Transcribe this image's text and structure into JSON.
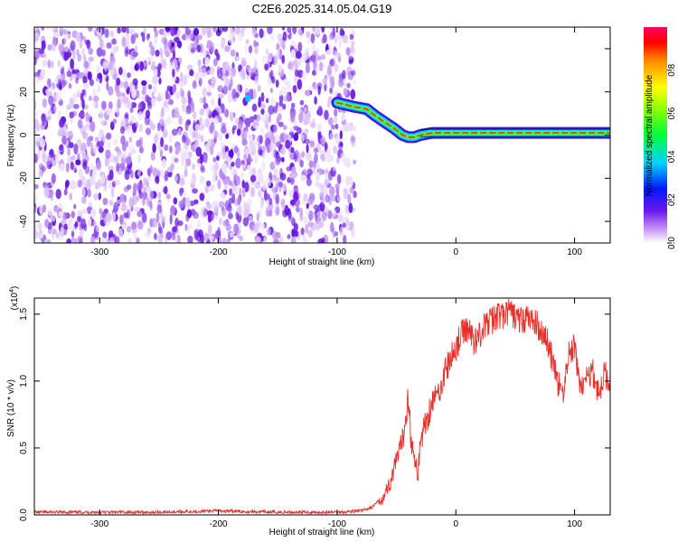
{
  "title": "C2E6.2025.314.05.04.G19",
  "chart_data": [
    {
      "type": "heatmap",
      "name": "spectrogram",
      "xlabel": "Height of straight line (km)",
      "ylabel": "Frequency (Hz)",
      "xlim": [
        -355,
        130
      ],
      "ylim": [
        -50,
        50
      ],
      "x_ticks": [
        -300,
        -200,
        -100,
        0,
        100
      ],
      "x_tick_labels": [
        "-300",
        "-200",
        "-100",
        "0",
        "100"
      ],
      "y_ticks": [
        -40,
        -20,
        0,
        20,
        40
      ],
      "y_tick_labels": [
        "-40",
        "-20",
        "0",
        "20",
        "40"
      ],
      "noise_region_x": [
        -355,
        -85
      ],
      "signal_track": {
        "x": [
          -100,
          -85,
          -75,
          -68,
          -60,
          -52,
          -45,
          -40,
          -35,
          -30,
          -20,
          -10,
          0,
          20,
          50,
          80,
          100,
          130
        ],
        "y": [
          15,
          13,
          12,
          9,
          6,
          3,
          0,
          -1,
          -1,
          0,
          1,
          1,
          1,
          1,
          1,
          1,
          1,
          1
        ]
      },
      "colorbar": {
        "label": "Normalized spectral amplitude",
        "range": [
          0,
          1
        ],
        "ticks": [
          0.0,
          0.2,
          0.4,
          0.6,
          0.8
        ],
        "tick_labels": [
          "0.0",
          "0.2",
          "0.4",
          "0.6",
          "0.8"
        ]
      }
    },
    {
      "type": "line",
      "name": "snr",
      "xlabel": "Height of straight line (km)",
      "ylabel": "SNR (10 * v/v)",
      "scale_label_main": "(x10",
      "scale_label_exp": "4",
      "scale_label_end": ")",
      "color": "#e8302a",
      "xlim": [
        -355,
        130
      ],
      "ylim": [
        0,
        1.62
      ],
      "x_ticks": [
        -300,
        -200,
        -100,
        0,
        100
      ],
      "x_tick_labels": [
        "-300",
        "-200",
        "-100",
        "0",
        "100"
      ],
      "y_ticks": [
        0.0,
        0.5,
        1.0,
        1.5
      ],
      "y_tick_labels": [
        "0.0",
        "0.5",
        "1.0",
        "1.5"
      ],
      "x": [
        -355,
        -300,
        -250,
        -200,
        -150,
        -100,
        -80,
        -70,
        -60,
        -55,
        -50,
        -45,
        -42,
        -40,
        -38,
        -35,
        -32,
        -30,
        -25,
        -20,
        -15,
        -10,
        -5,
        0,
        5,
        10,
        15,
        20,
        25,
        30,
        35,
        40,
        45,
        50,
        55,
        60,
        65,
        70,
        75,
        80,
        85,
        90,
        95,
        100,
        105,
        110,
        115,
        120,
        125,
        130
      ],
      "y": [
        0.02,
        0.02,
        0.02,
        0.03,
        0.02,
        0.02,
        0.03,
        0.06,
        0.15,
        0.25,
        0.4,
        0.55,
        0.75,
        0.9,
        0.6,
        0.4,
        0.3,
        0.55,
        0.7,
        0.85,
        0.9,
        1.05,
        1.15,
        1.25,
        1.35,
        1.4,
        1.3,
        1.35,
        1.42,
        1.45,
        1.5,
        1.48,
        1.52,
        1.48,
        1.45,
        1.47,
        1.45,
        1.4,
        1.35,
        1.2,
        1.0,
        0.9,
        1.2,
        1.25,
        0.95,
        1.0,
        1.1,
        0.9,
        1.05,
        1.0
      ]
    }
  ]
}
